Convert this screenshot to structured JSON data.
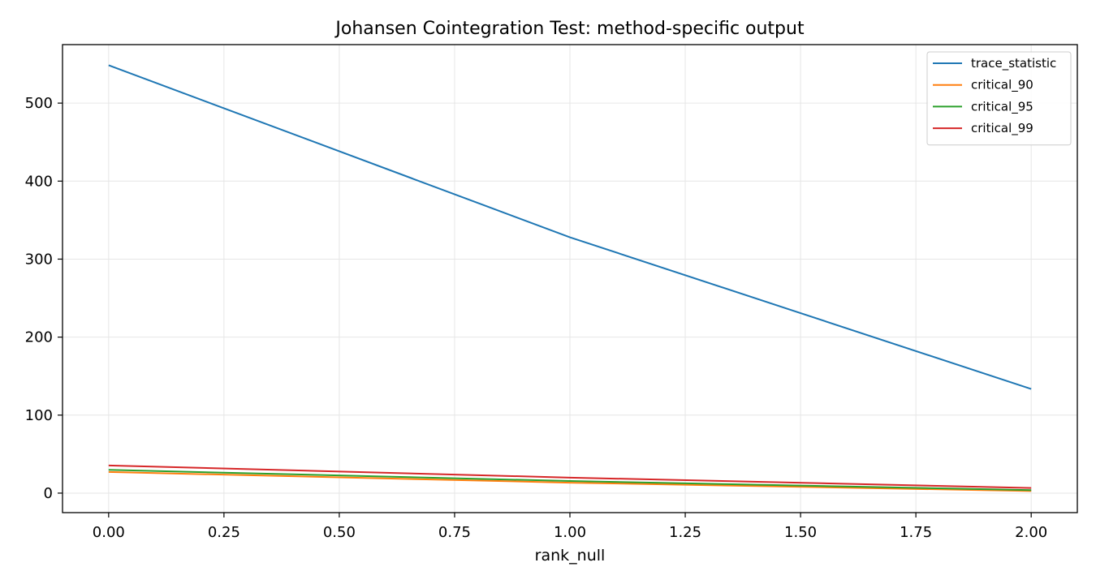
{
  "chart_data": {
    "type": "line",
    "title": "Johansen Cointegration Test: method-specific output",
    "xlabel": "rank_null",
    "ylabel": "",
    "x": [
      0,
      1,
      2
    ],
    "xlim": [
      -0.1,
      2.1
    ],
    "ylim": [
      -25,
      575
    ],
    "xticks": [
      "0.00",
      "0.25",
      "0.50",
      "0.75",
      "1.00",
      "1.25",
      "1.50",
      "1.75",
      "2.00"
    ],
    "xtick_values": [
      0,
      0.25,
      0.5,
      0.75,
      1.0,
      1.25,
      1.5,
      1.75,
      2.0
    ],
    "yticks": [
      "0",
      "100",
      "200",
      "300",
      "400",
      "500"
    ],
    "ytick_values": [
      0,
      100,
      200,
      300,
      400,
      500
    ],
    "grid": true,
    "legend_position": "top-right",
    "series": [
      {
        "name": "trace_statistic",
        "color": "#1f77b4",
        "values": [
          548.5,
          328.0,
          133.5
        ]
      },
      {
        "name": "critical_90",
        "color": "#ff7f0e",
        "values": [
          27.1,
          13.4,
          2.7
        ]
      },
      {
        "name": "critical_95",
        "color": "#2ca02c",
        "values": [
          29.8,
          15.5,
          3.8
        ]
      },
      {
        "name": "critical_99",
        "color": "#d62728",
        "values": [
          35.5,
          19.9,
          6.6
        ]
      }
    ]
  }
}
